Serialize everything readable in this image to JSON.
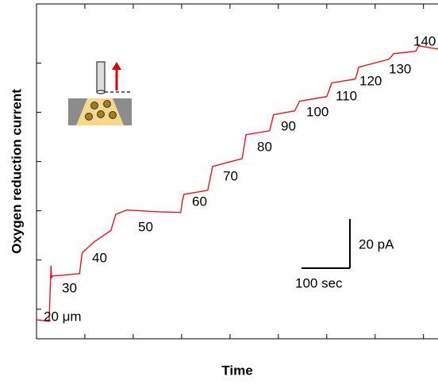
{
  "chart_data": {
    "type": "line",
    "x_label": "Time",
    "y_label": "Oxygen reduction current",
    "x": [
      0,
      26,
      30,
      31,
      33,
      60,
      89,
      93,
      95,
      120,
      154,
      160,
      164,
      187,
      252,
      298,
      302,
      305,
      354,
      360,
      364,
      425,
      430,
      433,
      482,
      487,
      490,
      534,
      540,
      544,
      600,
      606,
      610,
      659,
      663,
      666,
      728,
      733,
      738,
      784,
      787,
      790,
      830
    ],
    "series": [
      {
        "name": "Oxygen reduction current",
        "color": "#e8141b",
        "values": [
          7.7,
          7.1,
          29.7,
          24.8,
          25.5,
          25.9,
          26.5,
          33.0,
          35.0,
          39.5,
          44.0,
          48.0,
          50.6,
          52.3,
          51.6,
          51.3,
          56.5,
          58.7,
          60.3,
          66.0,
          70.0,
          73.2,
          79.0,
          82.9,
          84.5,
          88.5,
          91.0,
          92.6,
          95.0,
          96.5,
          98.4,
          101.5,
          103.9,
          105.5,
          108.0,
          110.3,
          113.5,
          114.5,
          115.8,
          116.8,
          118.0,
          119.0,
          117.7
        ]
      }
    ],
    "xlim": [
      0,
      830
    ],
    "ylim": [
      0,
      136
    ],
    "xticks": [
      100,
      200,
      300,
      400,
      500,
      600,
      700,
      800
    ],
    "yticks": [
      12,
      32,
      52,
      72,
      92,
      112
    ],
    "annotations": [
      "20 μm",
      "30",
      "40",
      "50",
      "60",
      "70",
      "80",
      "90",
      "100",
      "110",
      "120",
      "130",
      "140"
    ],
    "scale_bars": {
      "y": {
        "value": 20,
        "label": "20 pA"
      },
      "x": {
        "value": 100,
        "label": "100 sec"
      }
    }
  }
}
